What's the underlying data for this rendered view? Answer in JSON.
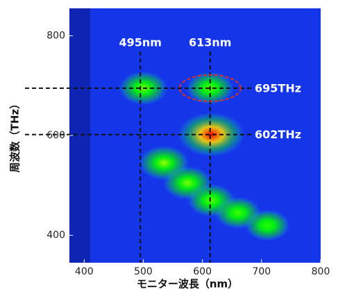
{
  "chart_data": {
    "type": "heatmap",
    "x_label": "モニター波長（nm）",
    "y_label": "周波数（THz）",
    "xlim": [
      375,
      800
    ],
    "ylim": [
      345,
      855
    ],
    "xticks": [
      400,
      500,
      600,
      700,
      800
    ],
    "yticks": [
      400,
      600,
      800
    ],
    "background": "#1535e8",
    "spots": {
      "x": [
        500,
        613,
        615,
        535,
        575,
        615,
        660,
        710
      ],
      "y": [
        695,
        695,
        602,
        545,
        505,
        470,
        445,
        420
      ],
      "intensity": [
        0.35,
        0.3,
        1,
        0.4,
        0.35,
        0.3,
        0.25,
        0.2
      ]
    },
    "markers": [
      {
        "axis": "x",
        "value": 495,
        "label": "495nm"
      },
      {
        "axis": "x",
        "value": 613,
        "label": "613nm"
      },
      {
        "axis": "y",
        "value": 695,
        "label": "695THz"
      },
      {
        "axis": "y",
        "value": 602,
        "label": "602THz"
      }
    ]
  }
}
